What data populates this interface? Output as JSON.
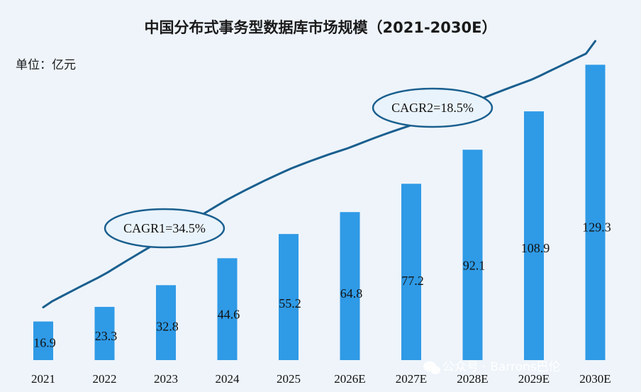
{
  "chart_data": {
    "type": "bar",
    "title": "中国分布式事务型数据库市场规模（2021-2030E）",
    "unit_label": "单位：亿元",
    "categories": [
      "2021",
      "2022",
      "2023",
      "2024",
      "2025",
      "2026E",
      "2027E",
      "2028E",
      "2029E",
      "2030E"
    ],
    "values": [
      16.9,
      23.3,
      32.8,
      44.6,
      55.2,
      64.8,
      77.2,
      92.1,
      108.9,
      129.3
    ],
    "ylim": [
      0,
      135
    ],
    "grid": false,
    "bar_color": "#2f9ae6",
    "trend_color": "#1a5f8f",
    "annotations": [
      "CAGR1=34.5%",
      "CAGR2=18.5%"
    ]
  },
  "watermark": "公众号 · Barrons巴伦"
}
